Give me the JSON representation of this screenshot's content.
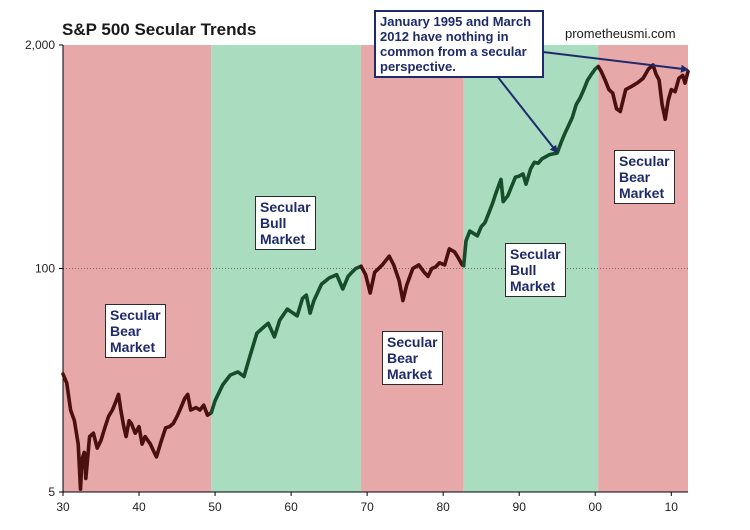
{
  "chart_data": {
    "type": "line",
    "title": "S&P 500 Secular Trends",
    "source_label": "prometheusmi.com",
    "y_scale": "log",
    "ylim": [
      5,
      2000
    ],
    "y_ticks": [
      5,
      100,
      2000
    ],
    "y_tick_labels": [
      "5",
      "100",
      "2,000"
    ],
    "xlim": [
      1930,
      2012.2
    ],
    "x_ticks": [
      1930,
      1940,
      1950,
      1960,
      1970,
      1980,
      1990,
      2000,
      2010
    ],
    "x_tick_labels": [
      "30",
      "40",
      "50",
      "60",
      "70",
      "80",
      "90",
      "00",
      "10"
    ],
    "gridline_value": 100,
    "regimes": [
      {
        "start": 1930,
        "end": 1949.5,
        "type": "bear",
        "lines": [
          "Secular",
          "Bear",
          "Market"
        ]
      },
      {
        "start": 1949.5,
        "end": 1969.2,
        "type": "bull",
        "lines": [
          "Secular",
          "Bull",
          "Market"
        ]
      },
      {
        "start": 1969.2,
        "end": 1982.7,
        "type": "bear",
        "lines": [
          "Secular",
          "Bear",
          "Market"
        ]
      },
      {
        "start": 1982.7,
        "end": 2000.4,
        "type": "bull",
        "lines": [
          "Secular",
          "Bull",
          "Market"
        ]
      },
      {
        "start": 2000.4,
        "end": 2012.2,
        "type": "bear",
        "lines": [
          "Secular",
          "Bear",
          "Market"
        ]
      }
    ],
    "colors": {
      "bear_band": "#e6a8a8",
      "bull_band": "#aadcc0",
      "bear_line": "#4a0f0f",
      "bull_line": "#164d2a",
      "callout": "#1f2a6b"
    },
    "annotation": {
      "text": "January 1995 and March 2012 have nothing in common from a secular perspective.",
      "points_to": [
        {
          "x": 1995.0,
          "y": 460
        },
        {
          "x": 2012.2,
          "y": 1400
        }
      ]
    },
    "series": [
      {
        "x": [
          1930.0,
          1930.5,
          1931.0,
          1931.5,
          1932.0,
          1932.3,
          1932.5,
          1932.8,
          1933.0,
          1933.5,
          1934.0,
          1934.5,
          1935.0,
          1935.5,
          1936.0,
          1936.5,
          1937.0,
          1937.3,
          1937.6,
          1938.0,
          1938.3,
          1938.7,
          1939.0,
          1939.5,
          1940.0,
          1940.4,
          1940.8,
          1941.5,
          1942.0,
          1942.3,
          1942.8,
          1943.5,
          1944.0,
          1944.5,
          1945.0,
          1945.5,
          1946.0,
          1946.4,
          1946.8,
          1947.5,
          1948.0,
          1948.5,
          1949.0,
          1949.5
        ],
        "y": [
          24.3,
          21.5,
          15.0,
          13.0,
          9.5,
          5.2,
          7.8,
          8.5,
          6.0,
          10.5,
          11.0,
          9.0,
          10.0,
          11.8,
          13.8,
          15.0,
          17.0,
          18.5,
          15.0,
          12.0,
          10.5,
          13.0,
          12.5,
          11.0,
          12.0,
          9.5,
          10.5,
          9.5,
          8.5,
          8.0,
          9.5,
          11.8,
          12.0,
          12.5,
          13.8,
          15.5,
          17.5,
          18.5,
          15.0,
          15.5,
          15.0,
          16.0,
          14.0,
          14.5
        ]
      },
      {
        "x": [
          1949.5,
          1950.0,
          1951.0,
          1952.0,
          1953.0,
          1953.8,
          1954.5,
          1955.5,
          1956.5,
          1957.0,
          1957.8,
          1958.5,
          1959.5,
          1960.0,
          1960.8,
          1961.5,
          1962.0,
          1962.5,
          1963.0,
          1964.0,
          1965.0,
          1966.0,
          1966.8,
          1967.5,
          1968.0,
          1968.5,
          1969.2
        ],
        "y": [
          14.5,
          17.0,
          21.0,
          24.0,
          25.0,
          23.5,
          30.0,
          42.0,
          46.0,
          48.0,
          40.0,
          50.0,
          58.0,
          56.0,
          53.0,
          67.0,
          70.0,
          55.0,
          65.0,
          81.0,
          88.0,
          92.0,
          76.0,
          90.0,
          95.0,
          100.0,
          103.0
        ]
      },
      {
        "x": [
          1969.2,
          1969.8,
          1970.4,
          1971.0,
          1972.0,
          1972.9,
          1973.5,
          1974.2,
          1974.7,
          1975.2,
          1976.0,
          1976.8,
          1977.5,
          1978.0,
          1978.5,
          1979.0,
          1979.5,
          1980.2,
          1980.8,
          1981.5,
          1982.0,
          1982.5,
          1982.7
        ],
        "y": [
          103.0,
          92.0,
          72.0,
          95.0,
          105.0,
          118.0,
          105.0,
          85.0,
          65.0,
          80.0,
          100.0,
          105.0,
          95.0,
          90.0,
          100.0,
          102.0,
          108.0,
          105.0,
          130.0,
          125.0,
          115.0,
          105.0,
          104.0
        ]
      },
      {
        "x": [
          1982.7,
          1983.0,
          1983.5,
          1984.0,
          1984.5,
          1985.0,
          1985.5,
          1986.0,
          1986.5,
          1987.0,
          1987.6,
          1987.9,
          1988.5,
          1989.0,
          1989.5,
          1990.0,
          1990.5,
          1990.9,
          1991.5,
          1992.0,
          1992.5,
          1993.0,
          1994.0,
          1995.0,
          1995.5,
          1996.0,
          1996.5,
          1997.0,
          1997.5,
          1998.0,
          1998.5,
          1999.0,
          1999.5,
          2000.0,
          2000.4
        ],
        "y": [
          104.0,
          145.0,
          165.0,
          160.0,
          155.0,
          175.0,
          185.0,
          210.0,
          240.0,
          280.0,
          330.0,
          245.0,
          265.0,
          300.0,
          340.0,
          345.0,
          355.0,
          310.0,
          380.0,
          415.0,
          410.0,
          435.0,
          460.0,
          470.0,
          540.0,
          610.0,
          680.0,
          760.0,
          900.0,
          980.0,
          1100.0,
          1250.0,
          1350.0,
          1450.0,
          1500.0
        ]
      },
      {
        "x": [
          2000.4,
          2000.8,
          2001.3,
          2001.8,
          2002.3,
          2002.8,
          2003.3,
          2004.0,
          2004.8,
          2005.5,
          2006.3,
          2007.0,
          2007.6,
          2008.0,
          2008.4,
          2008.8,
          2009.2,
          2009.6,
          2010.0,
          2010.5,
          2011.0,
          2011.5,
          2011.8,
          2012.2
        ],
        "y": [
          1500.0,
          1400.0,
          1250.0,
          1100.0,
          1050.0,
          850.0,
          820.0,
          1100.0,
          1150.0,
          1200.0,
          1280.0,
          1450.0,
          1530.0,
          1350.0,
          1250.0,
          900.0,
          740.0,
          950.0,
          1100.0,
          1070.0,
          1280.0,
          1330.0,
          1200.0,
          1400.0
        ]
      }
    ]
  }
}
